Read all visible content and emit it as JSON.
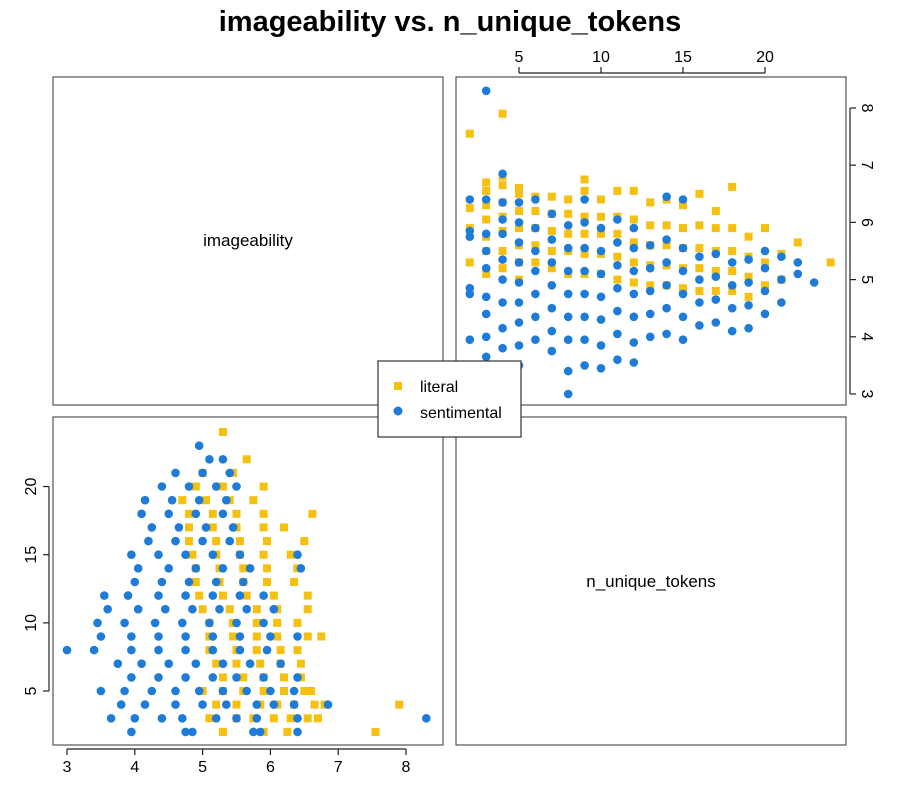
{
  "chart_data": {
    "type": "scatter",
    "title": "imageability vs. n_unique_tokens",
    "variables": [
      "imageability",
      "n_unique_tokens"
    ],
    "ranges": {
      "imageability": [
        3,
        8.3
      ],
      "n_unique_tokens": [
        2,
        24
      ]
    },
    "ticks": {
      "imageability": [
        3,
        4,
        5,
        6,
        7,
        8
      ],
      "n_unique_tokens": [
        5,
        10,
        15,
        20
      ]
    },
    "legend": {
      "position": "center",
      "entries": [
        "literal",
        "sentimental"
      ]
    },
    "series": [
      {
        "name": "literal",
        "marker": "square",
        "color": "#F5C010",
        "points": [
          [
            2,
            5.3
          ],
          [
            2,
            5.9
          ],
          [
            2,
            6.25
          ],
          [
            2,
            7.55
          ],
          [
            3,
            5.1
          ],
          [
            3,
            5.5
          ],
          [
            3,
            5.75
          ],
          [
            3,
            6.05
          ],
          [
            3,
            6.3
          ],
          [
            3,
            6.55
          ],
          [
            3,
            6.7
          ],
          [
            4,
            5.2
          ],
          [
            4,
            5.5
          ],
          [
            4,
            5.85
          ],
          [
            4,
            6.1
          ],
          [
            4,
            6.35
          ],
          [
            4,
            6.65
          ],
          [
            4,
            6.8
          ],
          [
            4,
            7.9
          ],
          [
            5,
            5.0
          ],
          [
            5,
            5.3
          ],
          [
            5,
            5.6
          ],
          [
            5,
            5.9
          ],
          [
            5,
            6.2
          ],
          [
            5,
            6.5
          ],
          [
            5,
            6.6
          ],
          [
            6,
            5.3
          ],
          [
            6,
            5.6
          ],
          [
            6,
            5.9
          ],
          [
            6,
            6.2
          ],
          [
            6,
            6.45
          ],
          [
            7,
            5.2
          ],
          [
            7,
            5.5
          ],
          [
            7,
            5.85
          ],
          [
            7,
            6.15
          ],
          [
            7,
            6.45
          ],
          [
            8,
            5.1
          ],
          [
            8,
            5.5
          ],
          [
            8,
            5.8
          ],
          [
            8,
            6.15
          ],
          [
            8,
            6.4
          ],
          [
            9,
            5.1
          ],
          [
            9,
            5.45
          ],
          [
            9,
            5.8
          ],
          [
            9,
            6.1
          ],
          [
            9,
            6.55
          ],
          [
            9,
            6.75
          ],
          [
            10,
            5.1
          ],
          [
            10,
            5.45
          ],
          [
            10,
            5.8
          ],
          [
            10,
            6.1
          ],
          [
            10,
            6.4
          ],
          [
            11,
            5.0
          ],
          [
            11,
            5.4
          ],
          [
            11,
            5.8
          ],
          [
            11,
            6.1
          ],
          [
            11,
            6.55
          ],
          [
            12,
            4.95
          ],
          [
            12,
            5.3
          ],
          [
            12,
            5.65
          ],
          [
            12,
            6.05
          ],
          [
            12,
            6.55
          ],
          [
            13,
            4.9
          ],
          [
            13,
            5.25
          ],
          [
            13,
            5.6
          ],
          [
            13,
            5.95
          ],
          [
            13,
            6.35
          ],
          [
            14,
            4.9
          ],
          [
            14,
            5.25
          ],
          [
            14,
            5.6
          ],
          [
            14,
            5.95
          ],
          [
            14,
            6.4
          ],
          [
            15,
            4.85
          ],
          [
            15,
            5.2
          ],
          [
            15,
            5.55
          ],
          [
            15,
            5.9
          ],
          [
            15,
            6.3
          ],
          [
            16,
            4.8
          ],
          [
            16,
            5.2
          ],
          [
            16,
            5.55
          ],
          [
            16,
            5.95
          ],
          [
            16,
            6.5
          ],
          [
            17,
            4.8
          ],
          [
            17,
            5.15
          ],
          [
            17,
            5.5
          ],
          [
            17,
            5.9
          ],
          [
            17,
            6.2
          ],
          [
            18,
            4.8
          ],
          [
            18,
            5.15
          ],
          [
            18,
            5.5
          ],
          [
            18,
            5.9
          ],
          [
            18,
            6.62
          ],
          [
            19,
            4.7
          ],
          [
            19,
            5.05
          ],
          [
            19,
            5.4
          ],
          [
            19,
            5.75
          ],
          [
            20,
            4.9
          ],
          [
            20,
            5.3
          ],
          [
            20,
            5.9
          ],
          [
            21,
            5.0
          ],
          [
            21,
            5.45
          ],
          [
            22,
            5.65
          ],
          [
            24,
            5.3
          ]
        ]
      },
      {
        "name": "sentimental",
        "marker": "circle",
        "color": "#1E7BD7",
        "points": [
          [
            2,
            3.95
          ],
          [
            2,
            4.75
          ],
          [
            2,
            4.85
          ],
          [
            2,
            5.75
          ],
          [
            2,
            5.85
          ],
          [
            2,
            6.4
          ],
          [
            3,
            3.65
          ],
          [
            3,
            4.0
          ],
          [
            3,
            4.4
          ],
          [
            3,
            4.7
          ],
          [
            3,
            5.2
          ],
          [
            3,
            5.5
          ],
          [
            3,
            5.8
          ],
          [
            3,
            6.4
          ],
          [
            3,
            8.3
          ],
          [
            4,
            3.8
          ],
          [
            4,
            4.15
          ],
          [
            4,
            4.6
          ],
          [
            4,
            5.0
          ],
          [
            4,
            5.35
          ],
          [
            4,
            5.8
          ],
          [
            4,
            6.05
          ],
          [
            4,
            6.35
          ],
          [
            4,
            6.85
          ],
          [
            5,
            3.5
          ],
          [
            5,
            3.85
          ],
          [
            5,
            4.25
          ],
          [
            5,
            4.6
          ],
          [
            5,
            4.95
          ],
          [
            5,
            5.3
          ],
          [
            5,
            5.65
          ],
          [
            5,
            6.0
          ],
          [
            5,
            6.35
          ],
          [
            6,
            3.95
          ],
          [
            6,
            4.35
          ],
          [
            6,
            4.75
          ],
          [
            6,
            5.15
          ],
          [
            6,
            5.5
          ],
          [
            6,
            5.9
          ],
          [
            6,
            6.4
          ],
          [
            7,
            3.75
          ],
          [
            7,
            4.1
          ],
          [
            7,
            4.5
          ],
          [
            7,
            4.9
          ],
          [
            7,
            5.3
          ],
          [
            7,
            5.7
          ],
          [
            7,
            6.15
          ],
          [
            8,
            3.0
          ],
          [
            8,
            3.4
          ],
          [
            8,
            3.95
          ],
          [
            8,
            4.35
          ],
          [
            8,
            4.75
          ],
          [
            8,
            5.15
          ],
          [
            8,
            5.55
          ],
          [
            8,
            5.95
          ],
          [
            9,
            3.5
          ],
          [
            9,
            3.95
          ],
          [
            9,
            4.35
          ],
          [
            9,
            4.75
          ],
          [
            9,
            5.15
          ],
          [
            9,
            5.55
          ],
          [
            9,
            6.0
          ],
          [
            9,
            6.4
          ],
          [
            10,
            3.45
          ],
          [
            10,
            3.85
          ],
          [
            10,
            4.3
          ],
          [
            10,
            4.7
          ],
          [
            10,
            5.1
          ],
          [
            10,
            5.5
          ],
          [
            10,
            5.9
          ],
          [
            11,
            3.6
          ],
          [
            11,
            4.05
          ],
          [
            11,
            4.45
          ],
          [
            11,
            4.85
          ],
          [
            11,
            5.25
          ],
          [
            11,
            5.65
          ],
          [
            11,
            6.05
          ],
          [
            12,
            3.55
          ],
          [
            12,
            3.9
          ],
          [
            12,
            4.35
          ],
          [
            12,
            4.75
          ],
          [
            12,
            5.15
          ],
          [
            12,
            5.55
          ],
          [
            12,
            5.9
          ],
          [
            13,
            4.0
          ],
          [
            13,
            4.4
          ],
          [
            13,
            4.8
          ],
          [
            13,
            5.2
          ],
          [
            13,
            5.6
          ],
          [
            14,
            4.05
          ],
          [
            14,
            4.5
          ],
          [
            14,
            4.9
          ],
          [
            14,
            5.3
          ],
          [
            14,
            5.7
          ],
          [
            14,
            6.45
          ],
          [
            15,
            3.95
          ],
          [
            15,
            4.35
          ],
          [
            15,
            4.75
          ],
          [
            15,
            5.15
          ],
          [
            15,
            5.55
          ],
          [
            15,
            6.4
          ],
          [
            16,
            4.2
          ],
          [
            16,
            4.6
          ],
          [
            16,
            5.0
          ],
          [
            16,
            5.4
          ],
          [
            17,
            4.25
          ],
          [
            17,
            4.65
          ],
          [
            17,
            5.05
          ],
          [
            17,
            5.45
          ],
          [
            18,
            4.1
          ],
          [
            18,
            4.5
          ],
          [
            18,
            4.9
          ],
          [
            18,
            5.3
          ],
          [
            19,
            4.15
          ],
          [
            19,
            4.55
          ],
          [
            19,
            4.95
          ],
          [
            19,
            5.35
          ],
          [
            20,
            4.4
          ],
          [
            20,
            4.8
          ],
          [
            20,
            5.2
          ],
          [
            20,
            5.5
          ],
          [
            21,
            4.6
          ],
          [
            21,
            5.0
          ],
          [
            21,
            5.4
          ],
          [
            22,
            5.1
          ],
          [
            22,
            5.3
          ],
          [
            23,
            4.95
          ]
        ]
      }
    ]
  }
}
